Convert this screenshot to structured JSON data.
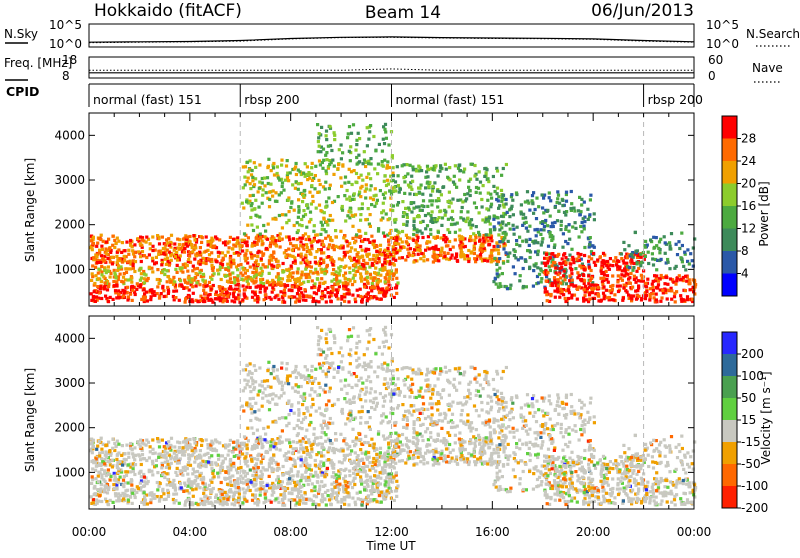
{
  "header": {
    "left": "Hokkaido (fitACF)",
    "center": "Beam 14",
    "right": "06/Jun/2013"
  },
  "colors": {
    "power": [
      "#0000ff",
      "#2a58a8",
      "#3d8a5a",
      "#4caa40",
      "#8ccc2c",
      "#f0a000",
      "#ff6a00",
      "#ff0000"
    ],
    "velocity": [
      "#2828ff",
      "#2e6a9a",
      "#4aa050",
      "#60d040",
      "#c8c8c0",
      "#f0a000",
      "#ff6800",
      "#ff2000"
    ]
  },
  "chart_data": [
    {
      "type": "line",
      "name": "nsky-nsearch",
      "left_label": "N.Sky",
      "right_label": "N.Search",
      "left_ticks": [
        "10^5",
        "10^0"
      ],
      "right_ticks": [
        "10^5",
        "10^0"
      ],
      "y_scale": "log",
      "ylim": [
        1,
        100000
      ],
      "x": [
        "00:00",
        "02:00",
        "04:00",
        "06:00",
        "08:00",
        "10:00",
        "12:00",
        "14:00",
        "16:00",
        "18:00",
        "20:00",
        "22:00",
        "00:00"
      ],
      "series": [
        {
          "name": "N.Sky",
          "values": [
            8,
            10,
            12,
            20,
            60,
            120,
            150,
            100,
            80,
            70,
            50,
            20,
            10
          ]
        },
        {
          "name": "N.Search",
          "values": [
            6,
            8,
            10,
            15,
            50,
            100,
            120,
            80,
            60,
            55,
            40,
            15,
            8
          ]
        }
      ]
    },
    {
      "type": "line",
      "name": "freq-nave",
      "left_label": "Freq. [MHz]",
      "right_label": "Nave",
      "left_ticks": [
        "18",
        "8"
      ],
      "right_ticks": [
        "60",
        "0"
      ],
      "series": [
        {
          "name": "Freq.",
          "values": [
            10.5,
            10.5,
            10.5,
            10.5,
            10.5,
            10.5,
            10.5,
            10.5,
            10.5,
            10.5,
            10.5,
            10.5,
            10.5
          ]
        },
        {
          "name": "Nave",
          "values": [
            22,
            22,
            22,
            22,
            22,
            22,
            26,
            22,
            22,
            22,
            22,
            22,
            22
          ]
        }
      ]
    },
    {
      "type": "table",
      "name": "cpid",
      "label": "CPID",
      "segments": [
        {
          "label": "normal (fast) 151",
          "start": 0,
          "end": 6
        },
        {
          "label": "rbsp 200",
          "start": 6,
          "end": 12
        },
        {
          "label": "normal (fast) 151",
          "start": 12,
          "end": 22
        },
        {
          "label": "rbsp 200",
          "start": 22,
          "end": 24
        }
      ]
    },
    {
      "type": "heatmap",
      "name": "power",
      "ylabel": "Slant Range [km]",
      "ylim": [
        180,
        4500
      ],
      "xlim": [
        0,
        24
      ],
      "y_ticks": [
        "1000",
        "2000",
        "3000",
        "4000"
      ],
      "colorbar_label": "Power [dB]",
      "colorbar_ticks": [
        "4",
        "8",
        "12",
        "16",
        "20",
        "24",
        "28"
      ],
      "dashed_lines_hours": [
        6,
        12,
        22
      ]
    },
    {
      "type": "heatmap",
      "name": "velocity",
      "ylabel": "Slant Range [km]",
      "xlabel": "Time UT",
      "ylim": [
        180,
        4500
      ],
      "xlim": [
        0,
        24
      ],
      "y_ticks": [
        "1000",
        "2000",
        "3000",
        "4000"
      ],
      "x_ticks": [
        "00:00",
        "04:00",
        "08:00",
        "12:00",
        "16:00",
        "20:00",
        "00:00"
      ],
      "colorbar_label": "Velocity [m s⁻¹]",
      "colorbar_ticks": [
        "200",
        "100",
        "50",
        "15",
        "-15",
        "-50",
        "-100",
        "-200"
      ],
      "dashed_lines_hours": [
        6,
        12,
        22
      ]
    }
  ]
}
